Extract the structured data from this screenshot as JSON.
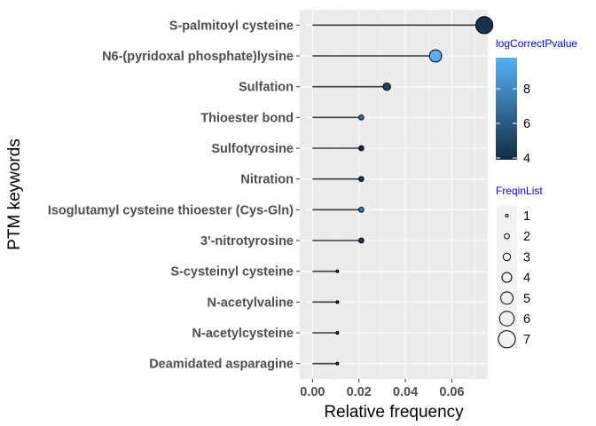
{
  "chart_data": {
    "type": "lollipop",
    "title": "",
    "xlabel": "Relative frequency",
    "ylabel": "PTM keywords",
    "xlim": [
      -0.0055,
      0.0755
    ],
    "xticks": [
      "0.00",
      "0.02",
      "0.04",
      "0.06"
    ],
    "xtick_values": [
      0.0,
      0.02,
      0.04,
      0.06
    ],
    "grid": true,
    "legend_position": "right",
    "points": [
      {
        "keyword": "S-palmitoyl cysteine",
        "freq": 0.074,
        "count": 7,
        "p": 4.2
      },
      {
        "keyword": "N6-(pyridoxal phosphate)lysine",
        "freq": 0.053,
        "count": 5,
        "p": 9.7
      },
      {
        "keyword": "Sulfation",
        "freq": 0.032,
        "count": 3,
        "p": 5.0
      },
      {
        "keyword": "Thioester bond",
        "freq": 0.021,
        "count": 2,
        "p": 7.0
      },
      {
        "keyword": "Sulfotyrosine",
        "freq": 0.021,
        "count": 2,
        "p": 4.0
      },
      {
        "keyword": "Nitration",
        "freq": 0.021,
        "count": 2,
        "p": 4.5
      },
      {
        "keyword": "Isoglutamyl cysteine thioester (Cys-Gln)",
        "freq": 0.021,
        "count": 2,
        "p": 7.5
      },
      {
        "keyword": "3'-nitrotyrosine",
        "freq": 0.021,
        "count": 2,
        "p": 4.5
      },
      {
        "keyword": "S-cysteinyl cysteine",
        "freq": 0.0107,
        "count": 1,
        "p": 4.0
      },
      {
        "keyword": "N-acetylvaline",
        "freq": 0.0107,
        "count": 1,
        "p": 4.0
      },
      {
        "keyword": "N-acetylcysteine",
        "freq": 0.0107,
        "count": 1,
        "p": 4.0
      },
      {
        "keyword": "Deamidated asparagine",
        "freq": 0.0107,
        "count": 1,
        "p": 4.0
      }
    ],
    "color_legend": {
      "title": "logCorrectPvalue",
      "range": [
        3.9,
        9.8
      ],
      "ticks": [
        "4",
        "6",
        "8"
      ],
      "tick_values": [
        4,
        6,
        8
      ],
      "low_color": "#132b43",
      "high_color": "#56b1f7"
    },
    "size_legend": {
      "title": "FreqinList",
      "labels": [
        "1",
        "2",
        "3",
        "4",
        "5",
        "6",
        "7"
      ],
      "values": [
        1,
        2,
        3,
        4,
        5,
        6,
        7
      ]
    }
  }
}
